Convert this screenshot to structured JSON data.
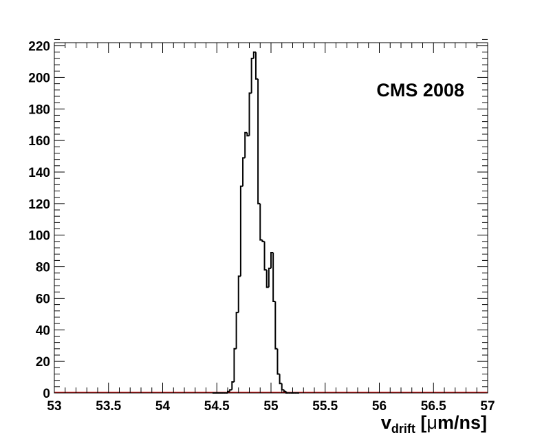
{
  "chart_data": {
    "type": "histogram",
    "annotation": "CMS 2008",
    "xlabel": {
      "main": "v",
      "sub": "drift",
      "unit_open": " [",
      "mu": "μ",
      "unit_rest": "m/ns]"
    },
    "ylabel": "",
    "xlim": [
      53,
      57
    ],
    "ylim": [
      0,
      222
    ],
    "xticks": [
      "53",
      "53.5",
      "54",
      "54.5",
      "55",
      "55.5",
      "56",
      "56.5",
      "57"
    ],
    "yticks": [
      "0",
      "20",
      "40",
      "60",
      "80",
      "100",
      "120",
      "140",
      "160",
      "180",
      "200",
      "220"
    ],
    "bin_width": 0.02,
    "bin_start": 54.46,
    "values": [
      0,
      0,
      0,
      0,
      0,
      0,
      0,
      1,
      2,
      7,
      28,
      51,
      74,
      131,
      149,
      165,
      163,
      190,
      212,
      216,
      199,
      120,
      97,
      96,
      78,
      67,
      79,
      89,
      58,
      28,
      12,
      6,
      2,
      1,
      0,
      0,
      0,
      0,
      0,
      0
    ],
    "grid": false,
    "colors": {
      "line": "#000000",
      "frame": "#000000",
      "baseline": "#cc0000"
    }
  }
}
